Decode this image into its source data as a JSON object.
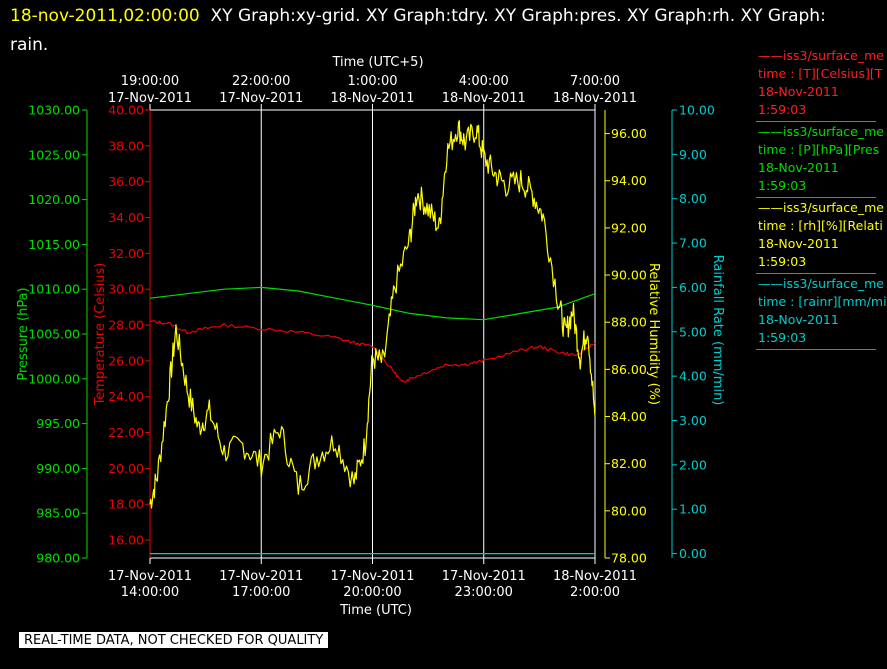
{
  "header": {
    "timestamp": "18-nov-2011,02:00:00",
    "titles": "XY Graph:xy-grid.  XY Graph:tdry.  XY Graph:pres.  XY Graph:rh.  XY Graph:",
    "titles_cont": "rain."
  },
  "footer": {
    "quality_note": "REAL-TIME DATA, NOT CHECKED FOR QUALITY"
  },
  "colors": {
    "pressure": "#00dd00",
    "temperature": "#ee0000",
    "humidity": "#ffff00",
    "rain": "#00cccc",
    "grid": "#ffffff"
  },
  "legend": [
    {
      "line1": "iss3/surface_me",
      "line2": "time : [T][Celsius][T",
      "line3": "18-Nov-2011",
      "line4": "1:59:03",
      "color": "#ff2020"
    },
    {
      "line1": "iss3/surface_me",
      "line2": "time : [P][hPa][Pres",
      "line3": "18-Nov-2011",
      "line4": "1:59:03",
      "color": "#00dd00"
    },
    {
      "line1": "iss3/surface_me",
      "line2": "time : [rh][%][Relati",
      "line3": "18-Nov-2011",
      "line4": "1:59:03",
      "color": "#ffff00"
    },
    {
      "line1": "iss3/surface_me",
      "line2": "time : [rainr][mm/mi",
      "line3": "18-Nov-2011",
      "line4": "1:59:03",
      "color": "#00cccc"
    }
  ],
  "chart_data": {
    "type": "line",
    "top_axis": {
      "label": "Time (UTC+5)",
      "ticks": [
        {
          "time": "19:00:00",
          "date": "17-Nov-2011"
        },
        {
          "time": "22:00:00",
          "date": "17-Nov-2011"
        },
        {
          "time": "1:00:00",
          "date": "18-Nov-2011"
        },
        {
          "time": "4:00:00",
          "date": "18-Nov-2011"
        },
        {
          "time": "7:00:00",
          "date": "18-Nov-2011"
        }
      ]
    },
    "bottom_axis": {
      "label": "Time (UTC)",
      "range_hours": [
        14,
        26
      ],
      "ticks": [
        {
          "date": "17-Nov-2011",
          "time": "14:00:00"
        },
        {
          "date": "17-Nov-2011",
          "time": "17:00:00"
        },
        {
          "date": "17-Nov-2011",
          "time": "20:00:00"
        },
        {
          "date": "17-Nov-2011",
          "time": "23:00:00"
        },
        {
          "date": "18-Nov-2011",
          "time": "2:00:00"
        }
      ]
    },
    "axes": {
      "pressure": {
        "label": "Pressure (hPa)",
        "min": 980,
        "max": 1030,
        "ticks": [
          "980.00",
          "985.00",
          "990.00",
          "995.00",
          "1000.00",
          "1005.00",
          "1010.00",
          "1015.00",
          "1020.00",
          "1025.00",
          "1030.00"
        ]
      },
      "temperature": {
        "label": "Temperature (Celsius)",
        "min": 15,
        "max": 40,
        "ticks": [
          "16.00",
          "18.00",
          "20.00",
          "22.00",
          "24.00",
          "26.00",
          "28.00",
          "30.00",
          "32.00",
          "34.00",
          "36.00",
          "38.00",
          "40.00"
        ]
      },
      "humidity": {
        "label": "Relative Humidity (%)",
        "min": 78,
        "max": 97,
        "ticks": [
          "78.00",
          "80.00",
          "82.00",
          "84.00",
          "86.00",
          "88.00",
          "90.00",
          "92.00",
          "94.00",
          "96.00"
        ]
      },
      "rain": {
        "label": "Rainfall Rate (mm/min)",
        "min": -0.1,
        "max": 10,
        "ticks": [
          "0.00",
          "1.00",
          "2.00",
          "3.00",
          "4.00",
          "5.00",
          "6.00",
          "7.00",
          "8.00",
          "9.00",
          "10.00"
        ]
      }
    },
    "series": [
      {
        "name": "Pressure",
        "axis": "pressure",
        "x": [
          14,
          15,
          16,
          17,
          18,
          19,
          20,
          21,
          22,
          23,
          24,
          25,
          26
        ],
        "y": [
          1009.0,
          1009.5,
          1010.0,
          1010.2,
          1009.8,
          1009.0,
          1008.2,
          1007.3,
          1006.8,
          1006.6,
          1007.3,
          1008.0,
          1009.5
        ]
      },
      {
        "name": "Temperature",
        "axis": "temperature",
        "x": [
          14,
          14.5,
          15,
          15.5,
          16,
          17,
          18,
          19,
          19.5,
          20,
          20.5,
          20.8,
          21,
          21.5,
          22,
          22.5,
          23,
          24,
          24.5,
          25,
          25.5,
          26
        ],
        "y": [
          28.2,
          28.1,
          27.6,
          27.8,
          28.0,
          27.8,
          27.6,
          27.3,
          27.0,
          26.8,
          25.6,
          24.8,
          25.0,
          25.4,
          25.8,
          25.8,
          26.0,
          26.6,
          26.8,
          26.5,
          26.3,
          27.0
        ]
      },
      {
        "name": "Relative Humidity",
        "axis": "humidity",
        "x": [
          14,
          14.2,
          14.5,
          14.7,
          15,
          15.3,
          15.6,
          16,
          16.5,
          17,
          17.5,
          18,
          18.5,
          19,
          19.5,
          19.8,
          20,
          20.3,
          20.6,
          21,
          21.2,
          21.5,
          21.8,
          22,
          22.3,
          22.5,
          22.8,
          23,
          23.3,
          23.6,
          24,
          24.3,
          24.6,
          25,
          25.2,
          25.4,
          25.6,
          25.8,
          26
        ],
        "y": [
          80.3,
          81.5,
          85.0,
          87.7,
          85.2,
          83.5,
          84.2,
          82.5,
          82.8,
          82.0,
          83.5,
          81.0,
          82.3,
          83.0,
          81.2,
          82.8,
          86.5,
          86.3,
          89.5,
          91.5,
          93.5,
          92.8,
          92.0,
          95.2,
          96.3,
          95.6,
          96.2,
          95.0,
          94.3,
          93.8,
          94.0,
          93.5,
          92.5,
          89.0,
          87.5,
          88.5,
          86.5,
          87.8,
          84.0
        ]
      },
      {
        "name": "Rainfall Rate",
        "axis": "rain",
        "x": [
          14,
          26
        ],
        "y": [
          0.0,
          0.0
        ]
      }
    ]
  }
}
